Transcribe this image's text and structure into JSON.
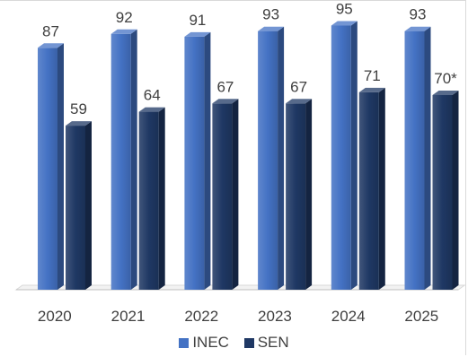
{
  "chart_data": {
    "type": "bar",
    "style": "3d-clustered-column",
    "categories": [
      "2020",
      "2021",
      "2022",
      "2023",
      "2024",
      "2025"
    ],
    "series": [
      {
        "name": "INEC",
        "values": [
          87,
          92,
          91,
          93,
          95,
          93
        ],
        "labels": [
          "87",
          "92",
          "91",
          "93",
          "95",
          "93"
        ],
        "color": "#4472C4"
      },
      {
        "name": "SEN",
        "values": [
          59,
          64,
          67,
          67,
          71,
          70
        ],
        "labels": [
          "59",
          "64",
          "67",
          "67",
          "71",
          "70*"
        ],
        "color": "#1F3864"
      }
    ],
    "title": "",
    "xlabel": "",
    "ylabel": "",
    "ylim": [
      0,
      100
    ],
    "grid": false,
    "legend": "bottom"
  }
}
